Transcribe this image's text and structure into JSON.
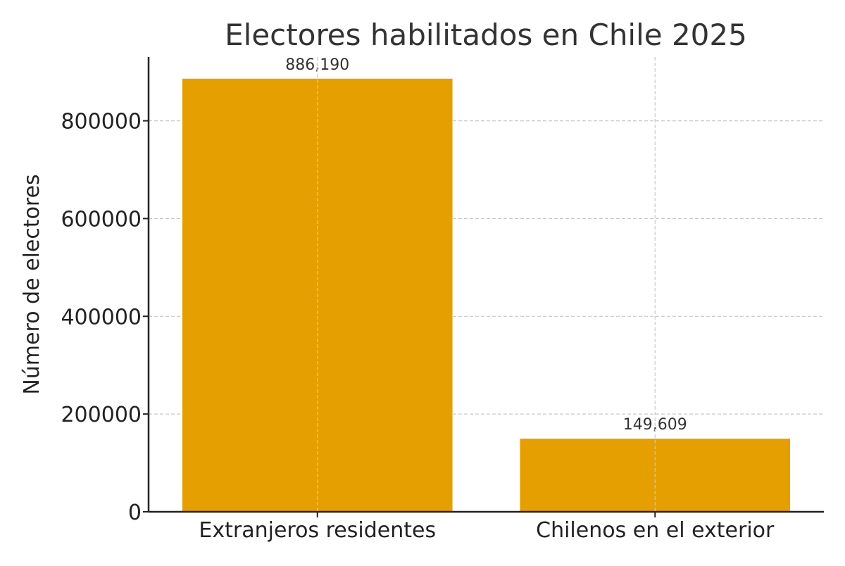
{
  "chart_data": {
    "type": "bar",
    "title": "Electores habilitados en Chile 2025",
    "xlabel": "",
    "ylabel": "Número de electores",
    "categories": [
      "Extranjeros residentes",
      "Chilenos en el exterior"
    ],
    "values": [
      886190,
      149609
    ],
    "data_labels": [
      "886,190",
      "149,609"
    ],
    "ylim": [
      0,
      930500
    ],
    "yticks": [
      0,
      200000,
      400000,
      600000,
      800000
    ],
    "ytick_labels": [
      "0",
      "200000",
      "400000",
      "600000",
      "800000"
    ],
    "grid": true,
    "colors": {
      "bar": "#E69F00",
      "grid": "#c8c8c8",
      "text": "#333333",
      "axis": "#222222"
    }
  }
}
